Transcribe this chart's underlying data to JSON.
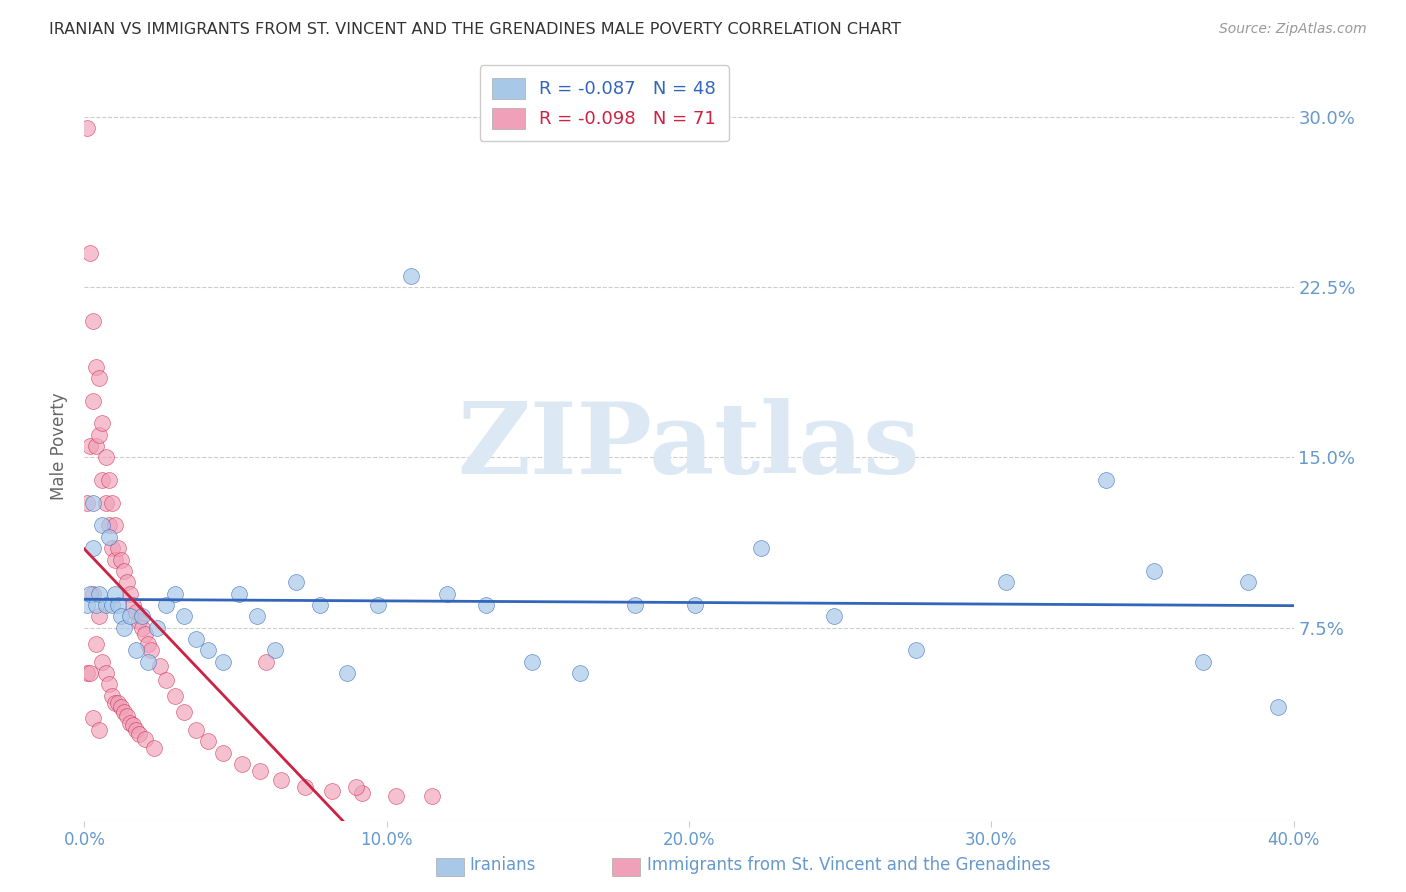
{
  "title": "IRANIAN VS IMMIGRANTS FROM ST. VINCENT AND THE GRENADINES MALE POVERTY CORRELATION CHART",
  "source": "Source: ZipAtlas.com",
  "ylabel": "Male Poverty",
  "ytick_labels": [
    "7.5%",
    "15.0%",
    "22.5%",
    "30.0%"
  ],
  "ytick_values": [
    0.075,
    0.15,
    0.225,
    0.3
  ],
  "xlim": [
    0.0,
    0.4
  ],
  "ylim": [
    -0.01,
    0.32
  ],
  "xtick_vals": [
    0.0,
    0.1,
    0.2,
    0.3,
    0.4
  ],
  "xtick_labels": [
    "0.0%",
    "10.0%",
    "20.0%",
    "30.0%",
    "40.0%"
  ],
  "legend_blue_text": "R = -0.087   N = 48",
  "legend_pink_text": "R = -0.098   N = 71",
  "legend_blue_label": "Iranians",
  "legend_pink_label": "Immigrants from St. Vincent and the Grenadines",
  "blue_color": "#a8c8e8",
  "pink_color": "#f0a0b8",
  "blue_line_color": "#3366bb",
  "pink_line_color": "#cc2244",
  "pink_dash_color": "#ccaaaa",
  "axis_label_color": "#6699cc",
  "title_color": "#333333",
  "background_color": "#ffffff",
  "watermark_color": "#dde8f5",
  "iranians_x": [
    0.001,
    0.002,
    0.003,
    0.003,
    0.004,
    0.005,
    0.006,
    0.007,
    0.008,
    0.009,
    0.01,
    0.011,
    0.012,
    0.013,
    0.015,
    0.017,
    0.019,
    0.021,
    0.024,
    0.027,
    0.03,
    0.033,
    0.037,
    0.041,
    0.046,
    0.051,
    0.057,
    0.063,
    0.07,
    0.078,
    0.087,
    0.097,
    0.108,
    0.12,
    0.133,
    0.148,
    0.164,
    0.182,
    0.202,
    0.224,
    0.248,
    0.275,
    0.305,
    0.338,
    0.354,
    0.37,
    0.385,
    0.395
  ],
  "iranians_y": [
    0.085,
    0.09,
    0.11,
    0.13,
    0.085,
    0.09,
    0.12,
    0.085,
    0.115,
    0.085,
    0.09,
    0.085,
    0.08,
    0.075,
    0.08,
    0.065,
    0.08,
    0.06,
    0.075,
    0.085,
    0.09,
    0.08,
    0.07,
    0.065,
    0.06,
    0.09,
    0.08,
    0.065,
    0.095,
    0.085,
    0.055,
    0.085,
    0.23,
    0.09,
    0.085,
    0.06,
    0.055,
    0.085,
    0.085,
    0.11,
    0.08,
    0.065,
    0.095,
    0.14,
    0.1,
    0.06,
    0.095,
    0.04
  ],
  "svg_x": [
    0.001,
    0.001,
    0.001,
    0.002,
    0.002,
    0.002,
    0.003,
    0.003,
    0.003,
    0.003,
    0.004,
    0.004,
    0.004,
    0.005,
    0.005,
    0.005,
    0.005,
    0.006,
    0.006,
    0.006,
    0.007,
    0.007,
    0.007,
    0.008,
    0.008,
    0.008,
    0.009,
    0.009,
    0.009,
    0.01,
    0.01,
    0.01,
    0.011,
    0.011,
    0.012,
    0.012,
    0.013,
    0.013,
    0.014,
    0.014,
    0.015,
    0.015,
    0.016,
    0.016,
    0.017,
    0.017,
    0.018,
    0.018,
    0.019,
    0.02,
    0.02,
    0.021,
    0.022,
    0.023,
    0.025,
    0.027,
    0.03,
    0.033,
    0.037,
    0.041,
    0.046,
    0.052,
    0.058,
    0.065,
    0.073,
    0.082,
    0.092,
    0.103,
    0.115,
    0.06,
    0.09
  ],
  "svg_y": [
    0.295,
    0.13,
    0.055,
    0.24,
    0.155,
    0.055,
    0.21,
    0.175,
    0.09,
    0.035,
    0.19,
    0.155,
    0.068,
    0.185,
    0.16,
    0.08,
    0.03,
    0.165,
    0.14,
    0.06,
    0.15,
    0.13,
    0.055,
    0.14,
    0.12,
    0.05,
    0.13,
    0.11,
    0.045,
    0.12,
    0.105,
    0.042,
    0.11,
    0.042,
    0.105,
    0.04,
    0.1,
    0.038,
    0.095,
    0.036,
    0.09,
    0.033,
    0.085,
    0.032,
    0.082,
    0.03,
    0.078,
    0.028,
    0.075,
    0.072,
    0.026,
    0.068,
    0.065,
    0.022,
    0.058,
    0.052,
    0.045,
    0.038,
    0.03,
    0.025,
    0.02,
    0.015,
    0.012,
    0.008,
    0.005,
    0.003,
    0.002,
    0.001,
    0.001,
    0.06,
    0.005
  ]
}
